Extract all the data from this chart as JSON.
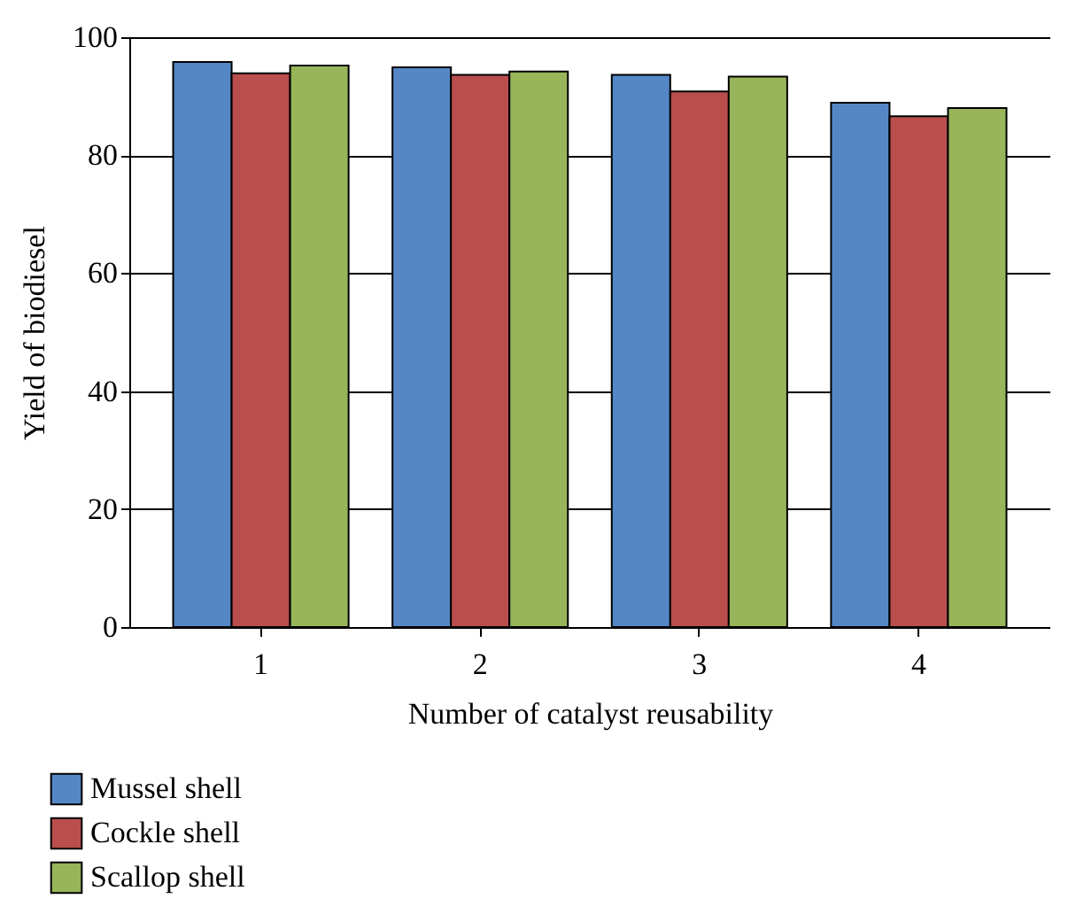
{
  "chart_data": {
    "type": "bar",
    "xlabel": "Number of catalyst reusability",
    "ylabel": "Yield of biodiesel",
    "categories": [
      "1",
      "2",
      "3",
      "4"
    ],
    "series": [
      {
        "name": "Mussel shell",
        "color": "#5587c6",
        "values": [
          95.8,
          94.9,
          93.6,
          88.9
        ]
      },
      {
        "name": "Cockle shell",
        "color": "#b94e4c",
        "values": [
          93.9,
          93.6,
          90.8,
          86.6
        ]
      },
      {
        "name": "Scallop shell",
        "color": "#98b55a",
        "values": [
          95.2,
          94.2,
          93.3,
          88
        ]
      }
    ],
    "ylim": [
      0,
      100
    ],
    "yticks": [
      0,
      20,
      40,
      60,
      80,
      100
    ],
    "grid": "y",
    "legend": "bottom left"
  }
}
